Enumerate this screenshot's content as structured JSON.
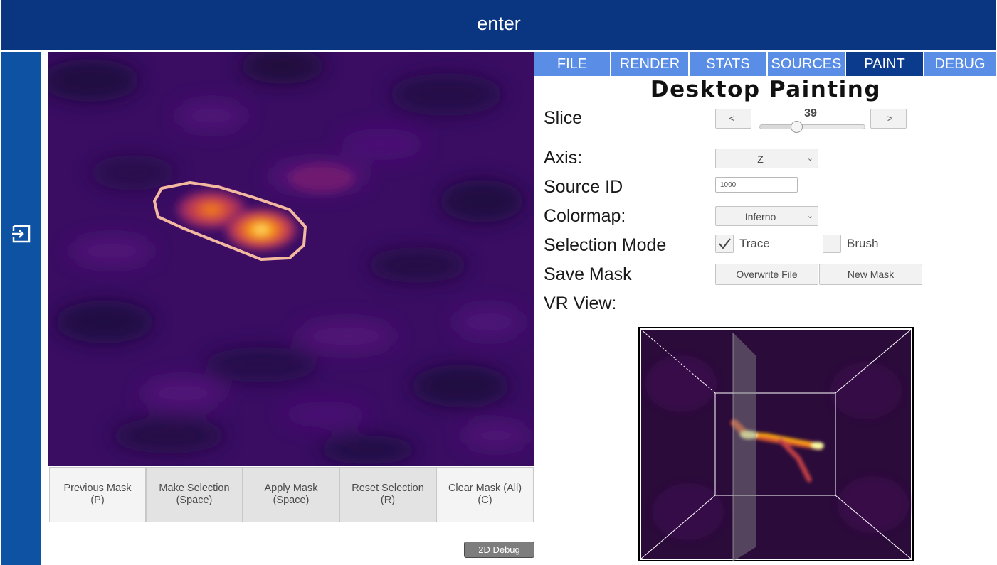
{
  "header": {
    "title": "enter"
  },
  "leftbar": {
    "icon": "exit-to-app-icon"
  },
  "viewport": {
    "colormap": "inferno"
  },
  "mask_buttons": [
    {
      "id": "previous-mask-button",
      "label": "Previous Mask\n(P)"
    },
    {
      "id": "make-selection-button",
      "label": "Make Selection\n(Space)"
    },
    {
      "id": "apply-mask-button",
      "label": "Apply Mask\n(Space)"
    },
    {
      "id": "reset-selection-button",
      "label": "Reset Selection\n(R)"
    },
    {
      "id": "clear-mask-button",
      "label": "Clear Mask (All)\n(C)"
    }
  ],
  "debug2d_label": "2D Debug",
  "tabs": [
    {
      "label": "FILE",
      "active": false
    },
    {
      "label": "RENDER",
      "active": false
    },
    {
      "label": "STATS",
      "active": false
    },
    {
      "label": "SOURCES",
      "active": false
    },
    {
      "label": "PAINT",
      "active": true
    },
    {
      "label": "DEBUG",
      "active": false
    }
  ],
  "panel": {
    "title": "Desktop Painting",
    "slice": {
      "label": "Slice",
      "value": "39",
      "prev_label": "<-",
      "next_label": "->",
      "position_fraction": 0.35
    },
    "axis": {
      "label": "Axis:",
      "value": "Z"
    },
    "source_id": {
      "label": "Source ID",
      "value": "1000"
    },
    "colormap": {
      "label": "Colormap:",
      "value": "Inferno"
    },
    "selection_mode": {
      "label": "Selection Mode",
      "trace_label": "Trace",
      "trace_checked": true,
      "brush_label": "Brush",
      "brush_checked": false
    },
    "save_mask": {
      "label": "Save Mask",
      "overwrite_label": "Overwrite File",
      "new_label": "New Mask"
    },
    "vr_view": {
      "label": "VR View:"
    }
  },
  "colors": {
    "header_bg": "#0a3580",
    "leftbar_bg": "#0e53a3",
    "tab_bg": "#5a8ee6",
    "tab_active_bg": "#0a3b8c"
  }
}
